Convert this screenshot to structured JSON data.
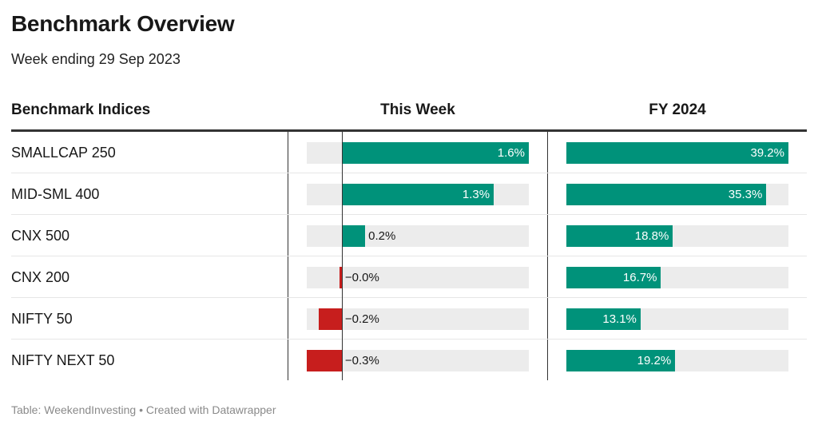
{
  "title": "Benchmark Overview",
  "subtitle": "Week ending 29 Sep 2023",
  "columns": {
    "name": "Benchmark Indices",
    "week": "This Week",
    "fy": "FY 2024"
  },
  "colors": {
    "positive": "#00927a",
    "negative": "#c71e1d",
    "bar_background": "#ececec"
  },
  "chart_data": {
    "type": "table",
    "rows": [
      {
        "name": "SMALLCAP 250",
        "week": 1.6,
        "week_label": "1.6%",
        "fy": 39.2,
        "fy_label": "39.2%"
      },
      {
        "name": "MID-SML 400",
        "week": 1.3,
        "week_label": "1.3%",
        "fy": 35.3,
        "fy_label": "35.3%"
      },
      {
        "name": "CNX 500",
        "week": 0.2,
        "week_label": "0.2%",
        "fy": 18.8,
        "fy_label": "18.8%"
      },
      {
        "name": "CNX 200",
        "week": -0.02,
        "week_label": "−0.0%",
        "fy": 16.7,
        "fy_label": "16.7%"
      },
      {
        "name": "NIFTY 50",
        "week": -0.2,
        "week_label": "−0.2%",
        "fy": 13.1,
        "fy_label": "13.1%"
      },
      {
        "name": "NIFTY NEXT 50",
        "week": -0.3,
        "week_label": "−0.3%",
        "fy": 19.2,
        "fy_label": "19.2%"
      }
    ],
    "week_range": [
      -0.3,
      1.6
    ],
    "fy_range": [
      0,
      39.2
    ]
  },
  "footer": "Table: WeekendInvesting • Created with Datawrapper"
}
